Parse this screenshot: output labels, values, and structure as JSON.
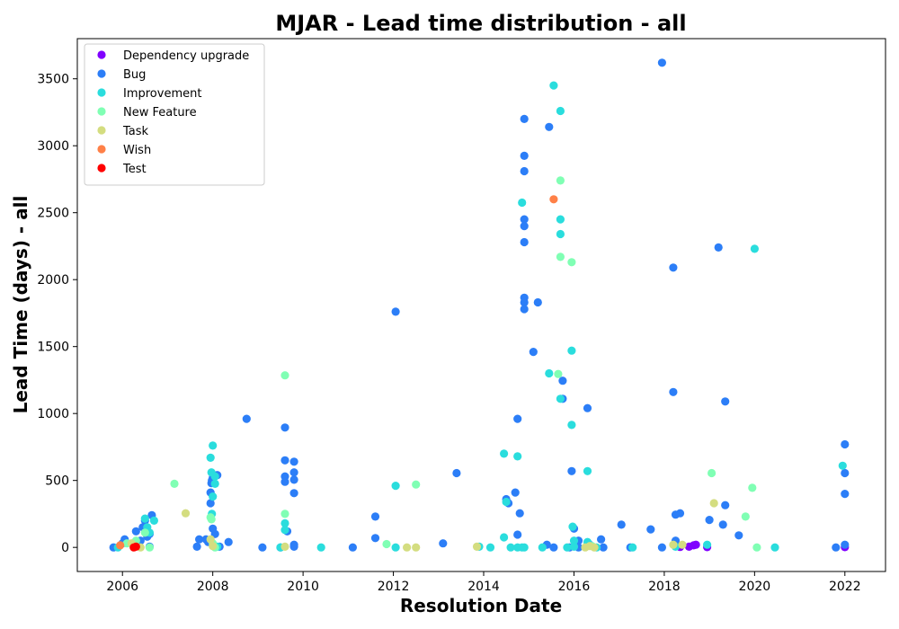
{
  "chart_data": {
    "type": "scatter",
    "title": "MJAR - Lead time distribution - all",
    "xlabel": "Resolution Date",
    "ylabel": "Lead Time (days) - all",
    "xlim": [
      2005.0,
      2022.9
    ],
    "ylim": [
      -180,
      3800
    ],
    "x_ticks": [
      2006,
      2008,
      2010,
      2012,
      2014,
      2016,
      2018,
      2020,
      2022
    ],
    "x_tick_labels": [
      "2006",
      "2008",
      "2010",
      "2012",
      "2014",
      "2016",
      "2018",
      "2020",
      "2022"
    ],
    "y_ticks": [
      0,
      500,
      1000,
      1500,
      2000,
      2500,
      3000,
      3500
    ],
    "y_tick_labels": [
      "0",
      "500",
      "1000",
      "1500",
      "2000",
      "2500",
      "3000",
      "3500"
    ],
    "grid": false,
    "legend_position": "top-left",
    "series": [
      {
        "name": "Dependency upgrade",
        "color": "#8000ff",
        "points": [
          [
            2018.35,
            3
          ],
          [
            2018.55,
            5
          ],
          [
            2018.65,
            15
          ],
          [
            2018.7,
            20
          ],
          [
            2018.95,
            2
          ],
          [
            2022.0,
            2
          ]
        ]
      },
      {
        "name": "Bug",
        "color": "#2c7ef7",
        "points": [
          [
            2005.8,
            0
          ],
          [
            2006.0,
            30
          ],
          [
            2006.05,
            60
          ],
          [
            2006.3,
            120
          ],
          [
            2006.4,
            50
          ],
          [
            2006.45,
            150
          ],
          [
            2006.5,
            200
          ],
          [
            2006.55,
            80
          ],
          [
            2006.6,
            100
          ],
          [
            2006.65,
            240
          ],
          [
            2006.6,
            5
          ],
          [
            2007.65,
            5
          ],
          [
            2007.7,
            60
          ],
          [
            2007.85,
            60
          ],
          [
            2007.9,
            40
          ],
          [
            2007.95,
            330
          ],
          [
            2007.95,
            410
          ],
          [
            2007.97,
            480
          ],
          [
            2007.98,
            500
          ],
          [
            2008.0,
            520
          ],
          [
            2008.0,
            140
          ],
          [
            2008.05,
            100
          ],
          [
            2008.1,
            540
          ],
          [
            2008.15,
            5
          ],
          [
            2008.35,
            40
          ],
          [
            2008.75,
            960
          ],
          [
            2009.1,
            0
          ],
          [
            2009.5,
            0
          ],
          [
            2009.6,
            490
          ],
          [
            2009.6,
            530
          ],
          [
            2009.6,
            650
          ],
          [
            2009.6,
            895
          ],
          [
            2009.65,
            120
          ],
          [
            2009.8,
            640
          ],
          [
            2009.8,
            560
          ],
          [
            2009.8,
            505
          ],
          [
            2009.8,
            405
          ],
          [
            2009.8,
            5
          ],
          [
            2009.8,
            20
          ],
          [
            2011.1,
            0
          ],
          [
            2011.6,
            230
          ],
          [
            2011.6,
            70
          ],
          [
            2012.05,
            1760
          ],
          [
            2013.1,
            30
          ],
          [
            2013.4,
            555
          ],
          [
            2014.5,
            360
          ],
          [
            2014.55,
            330
          ],
          [
            2014.7,
            410
          ],
          [
            2014.75,
            960
          ],
          [
            2014.8,
            255
          ],
          [
            2014.75,
            95
          ],
          [
            2014.9,
            3200
          ],
          [
            2014.9,
            2925
          ],
          [
            2014.9,
            2810
          ],
          [
            2014.9,
            2450
          ],
          [
            2014.9,
            2400
          ],
          [
            2014.9,
            2280
          ],
          [
            2014.9,
            1865
          ],
          [
            2014.9,
            1830
          ],
          [
            2014.9,
            1780
          ],
          [
            2015.1,
            1460
          ],
          [
            2015.2,
            1830
          ],
          [
            2015.45,
            3140
          ],
          [
            2015.4,
            20
          ],
          [
            2015.55,
            0
          ],
          [
            2015.75,
            1245
          ],
          [
            2015.75,
            1110
          ],
          [
            2015.9,
            0
          ],
          [
            2015.95,
            570
          ],
          [
            2016.0,
            140
          ],
          [
            2016.1,
            50
          ],
          [
            2016.3,
            1040
          ],
          [
            2016.1,
            0
          ],
          [
            2016.35,
            20
          ],
          [
            2016.6,
            60
          ],
          [
            2016.65,
            0
          ],
          [
            2017.05,
            170
          ],
          [
            2017.25,
            0
          ],
          [
            2017.7,
            135
          ],
          [
            2017.95,
            3620
          ],
          [
            2017.95,
            0
          ],
          [
            2018.2,
            2090
          ],
          [
            2018.2,
            1160
          ],
          [
            2018.25,
            245
          ],
          [
            2018.25,
            50
          ],
          [
            2018.35,
            255
          ],
          [
            2019.0,
            205
          ],
          [
            2019.2,
            2240
          ],
          [
            2019.3,
            170
          ],
          [
            2019.35,
            315
          ],
          [
            2019.35,
            1090
          ],
          [
            2019.65,
            90
          ],
          [
            2021.8,
            0
          ],
          [
            2022.0,
            770
          ],
          [
            2022.0,
            555
          ],
          [
            2022.0,
            400
          ],
          [
            2022.0,
            20
          ]
        ]
      },
      {
        "name": "Improvement",
        "color": "#2adddd",
        "points": [
          [
            2005.9,
            0
          ],
          [
            2006.5,
            215
          ],
          [
            2006.55,
            150
          ],
          [
            2006.6,
            110
          ],
          [
            2006.7,
            200
          ],
          [
            2007.95,
            670
          ],
          [
            2007.97,
            560
          ],
          [
            2007.98,
            250
          ],
          [
            2008.0,
            380
          ],
          [
            2008.0,
            760
          ],
          [
            2008.05,
            530
          ],
          [
            2008.05,
            475
          ],
          [
            2008.1,
            5
          ],
          [
            2009.6,
            180
          ],
          [
            2009.6,
            130
          ],
          [
            2009.5,
            0
          ],
          [
            2010.4,
            0
          ],
          [
            2012.05,
            460
          ],
          [
            2012.05,
            0
          ],
          [
            2013.9,
            5
          ],
          [
            2014.15,
            0
          ],
          [
            2014.45,
            75
          ],
          [
            2014.45,
            700
          ],
          [
            2014.5,
            340
          ],
          [
            2014.6,
            0
          ],
          [
            2014.75,
            680
          ],
          [
            2014.75,
            0
          ],
          [
            2014.85,
            0
          ],
          [
            2014.9,
            0
          ],
          [
            2014.85,
            2575
          ],
          [
            2015.3,
            0
          ],
          [
            2015.45,
            1300
          ],
          [
            2015.55,
            3450
          ],
          [
            2015.7,
            3260
          ],
          [
            2015.7,
            2450
          ],
          [
            2015.7,
            2340
          ],
          [
            2015.7,
            1110
          ],
          [
            2015.85,
            0
          ],
          [
            2015.95,
            1470
          ],
          [
            2015.95,
            915
          ],
          [
            2015.97,
            155
          ],
          [
            2016.0,
            50
          ],
          [
            2016.0,
            5
          ],
          [
            2016.3,
            570
          ],
          [
            2016.3,
            40
          ],
          [
            2016.5,
            0
          ],
          [
            2017.3,
            0
          ],
          [
            2018.25,
            5
          ],
          [
            2018.95,
            20
          ],
          [
            2020.0,
            2230
          ],
          [
            2020.45,
            0
          ],
          [
            2021.95,
            610
          ]
        ]
      },
      {
        "name": "New Feature",
        "color": "#80ffb4",
        "points": [
          [
            2006.1,
            30
          ],
          [
            2006.3,
            50
          ],
          [
            2006.5,
            110
          ],
          [
            2006.6,
            0
          ],
          [
            2007.15,
            475
          ],
          [
            2007.95,
            225
          ],
          [
            2007.97,
            210
          ],
          [
            2008.0,
            30
          ],
          [
            2008.05,
            0
          ],
          [
            2009.6,
            1285
          ],
          [
            2009.6,
            250
          ],
          [
            2011.85,
            25
          ],
          [
            2012.5,
            470
          ],
          [
            2015.65,
            1295
          ],
          [
            2015.7,
            2740
          ],
          [
            2015.7,
            2170
          ],
          [
            2015.95,
            2130
          ],
          [
            2016.4,
            10
          ],
          [
            2019.05,
            555
          ],
          [
            2019.8,
            230
          ],
          [
            2019.95,
            445
          ],
          [
            2020.05,
            0
          ]
        ]
      },
      {
        "name": "Task",
        "color": "#d4dd80",
        "points": [
          [
            2006.2,
            30
          ],
          [
            2006.4,
            0
          ],
          [
            2007.4,
            255
          ],
          [
            2007.95,
            60
          ],
          [
            2008.0,
            10
          ],
          [
            2009.6,
            5
          ],
          [
            2012.3,
            0
          ],
          [
            2012.5,
            0
          ],
          [
            2013.85,
            5
          ],
          [
            2016.25,
            0
          ],
          [
            2016.35,
            10
          ],
          [
            2016.45,
            0
          ],
          [
            2018.2,
            20
          ],
          [
            2018.4,
            20
          ],
          [
            2019.1,
            330
          ]
        ]
      },
      {
        "name": "Wish",
        "color": "#ff8047",
        "points": [
          [
            2005.95,
            15
          ],
          [
            2015.55,
            2600
          ]
        ]
      },
      {
        "name": "Test",
        "color": "#ff0000",
        "points": [
          [
            2006.25,
            0
          ],
          [
            2006.3,
            5
          ]
        ]
      }
    ]
  }
}
